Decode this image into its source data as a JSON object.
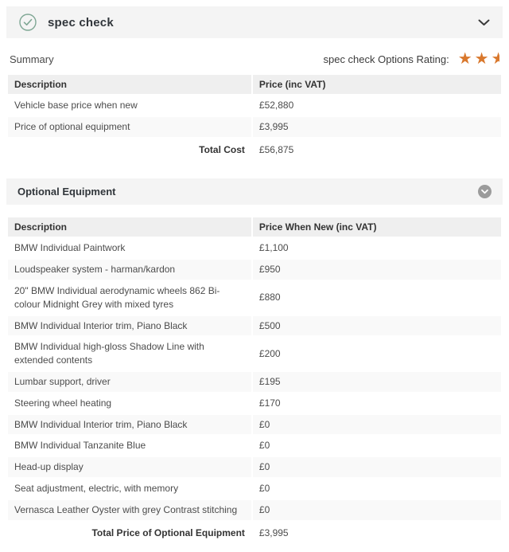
{
  "header": {
    "title": "spec check"
  },
  "summary": {
    "label": "Summary",
    "rating_label": "spec check Options Rating:",
    "rating": {
      "full_stars": 2,
      "half_stars": 1
    },
    "table": {
      "columns": [
        "Description",
        "Price (inc VAT)"
      ],
      "rows": [
        {
          "description": "Vehicle base price when new",
          "price": "£52,880"
        },
        {
          "description": "Price of optional equipment",
          "price": "£3,995"
        }
      ],
      "total_label": "Total Cost",
      "total_value": "£56,875"
    }
  },
  "optional_equipment": {
    "title": "Optional Equipment",
    "table": {
      "columns": [
        "Description",
        "Price When New (inc VAT)"
      ],
      "rows": [
        {
          "description": "BMW Individual Paintwork",
          "price": "£1,100"
        },
        {
          "description": "Loudspeaker system - harman/kardon",
          "price": "£950"
        },
        {
          "description": "20\" BMW Individual aerodynamic wheels 862 Bi-colour Midnight Grey with mixed tyres",
          "price": "£880"
        },
        {
          "description": "BMW Individual Interior trim, Piano Black",
          "price": "£500"
        },
        {
          "description": "BMW Individual high-gloss Shadow Line with extended contents",
          "price": "£200"
        },
        {
          "description": "Lumbar support, driver",
          "price": "£195"
        },
        {
          "description": "Steering wheel heating",
          "price": "£170"
        },
        {
          "description": "BMW Individual Interior trim, Piano Black",
          "price": "£0"
        },
        {
          "description": "BMW Individual Tanzanite Blue",
          "price": "£0"
        },
        {
          "description": "Head-up display",
          "price": "£0"
        },
        {
          "description": "Seat adjustment, electric, with memory",
          "price": "£0"
        },
        {
          "description": "Vernasca Leather Oyster with grey Contrast stitching",
          "price": "£0"
        }
      ],
      "total_label": "Total Price of Optional Equipment",
      "total_value": "£3,995"
    }
  },
  "icons": {
    "check": "check-circle-icon",
    "chevron_header": "chevron-down-icon",
    "chevron_section": "chevron-down-circle-icon",
    "star": "star-icon"
  },
  "colors": {
    "bar_bg": "#f4f4f4",
    "table_header_bg": "#efefef",
    "alt_row_bg": "#f9f9f9",
    "star_orange": "#d9782d",
    "check_green": "#7fa794",
    "chevron_circle_gray": "#9b9b9b",
    "text_dark": "#333333",
    "text_body": "#4c4c4c"
  }
}
